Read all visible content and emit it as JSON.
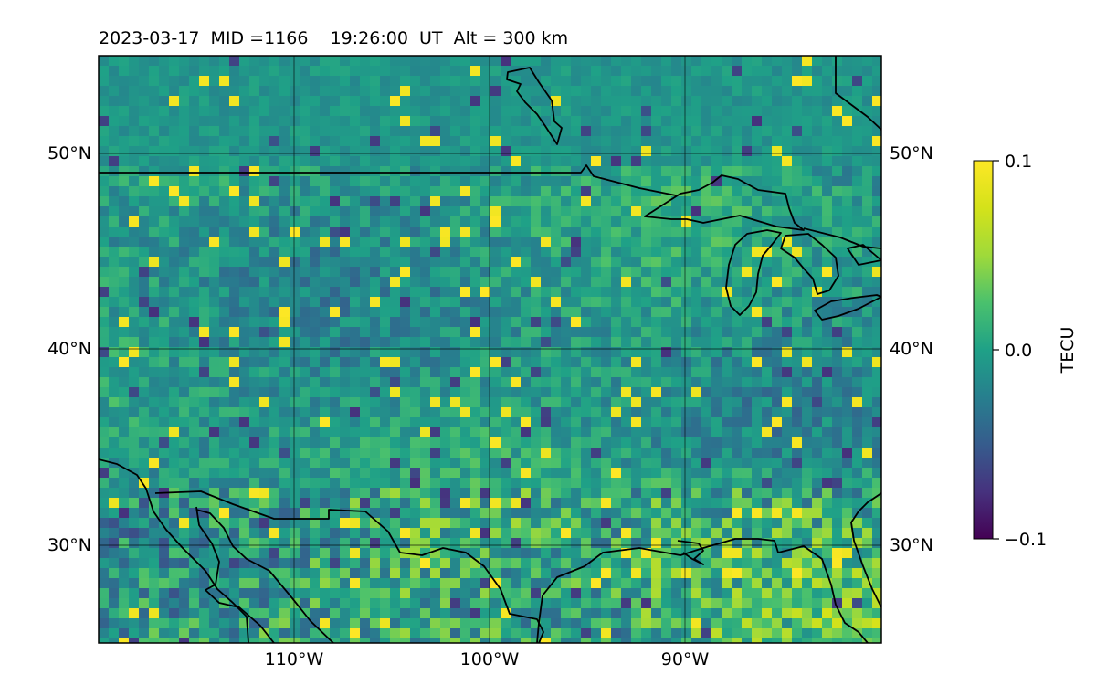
{
  "figure": {
    "title": "2023-03-17  MID =1166    19:26:00  UT  Alt = 300 km"
  },
  "map": {
    "lat_ticks": [
      {
        "value": 50,
        "label": "50°N"
      },
      {
        "value": 40,
        "label": "40°N"
      },
      {
        "value": 30,
        "label": "30°N"
      }
    ],
    "lon_ticks": [
      {
        "value": -110,
        "label": "110°W"
      },
      {
        "value": -100,
        "label": "100°W"
      },
      {
        "value": -90,
        "label": "90°W"
      }
    ],
    "lon_range": [
      -120,
      -80
    ],
    "lat_range": [
      25,
      55
    ],
    "grid": true,
    "coastline_color": "#000000"
  },
  "colorbar": {
    "label": "TECU",
    "tick_labels": [
      "0.1",
      "0.0",
      "−0.1"
    ],
    "range": [
      -0.1,
      0.1
    ],
    "colormap": "viridis"
  },
  "chart_data": {
    "type": "heatmap",
    "title": "2023-03-17  MID =1166    19:26:00  UT  Alt = 300 km",
    "xlabel": "",
    "ylabel": "",
    "colorbar_label": "TECU",
    "value_range": [
      -0.1,
      0.1
    ],
    "x_ticks": [
      "110°W",
      "100°W",
      "90°W"
    ],
    "y_ticks": [
      "50°N",
      "40°N",
      "30°N"
    ]
  }
}
